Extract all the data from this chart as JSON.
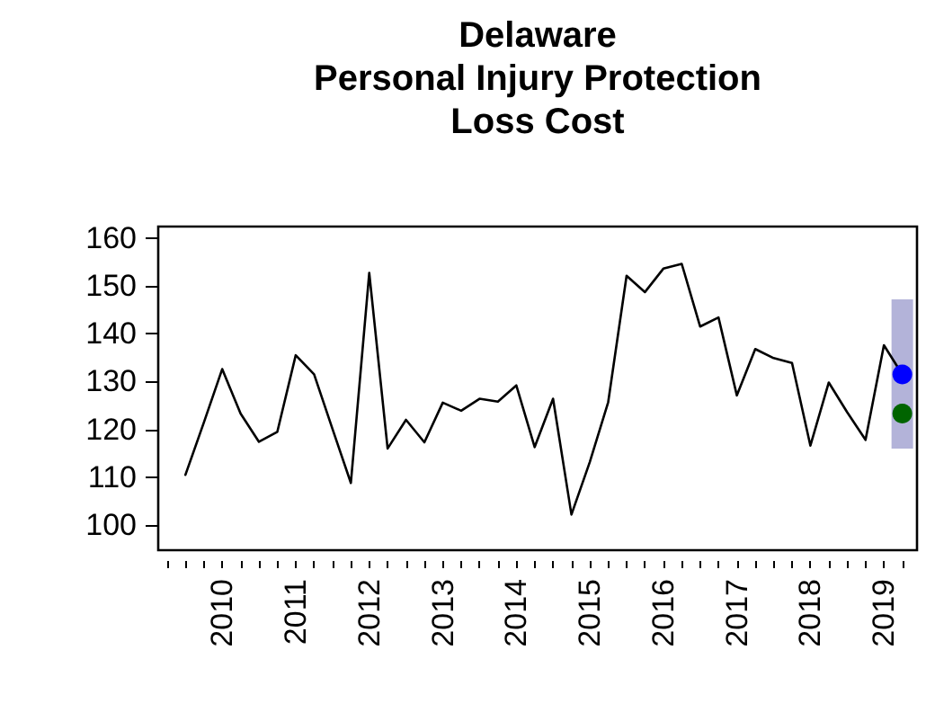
{
  "chart_data": {
    "type": "line",
    "title": "Delaware\nPersonal Injury Protection\nLoss Cost",
    "xlim": [
      2009.13,
      2019.45
    ],
    "ylim": [
      94.75,
      162.4
    ],
    "xticks": [
      {
        "value": 2009.25,
        "label": null
      },
      {
        "value": 2009.5,
        "label": null
      },
      {
        "value": 2009.75,
        "label": null
      },
      2010,
      {
        "value": 2010.25,
        "label": null
      },
      {
        "value": 2010.5,
        "label": null
      },
      {
        "value": 2010.75,
        "label": null
      },
      2011,
      {
        "value": 2011.25,
        "label": null
      },
      {
        "value": 2011.5,
        "label": null
      },
      {
        "value": 2011.75,
        "label": null
      },
      2012,
      {
        "value": 2012.25,
        "label": null
      },
      {
        "value": 2012.5,
        "label": null
      },
      {
        "value": 2012.75,
        "label": null
      },
      2013,
      {
        "value": 2013.25,
        "label": null
      },
      {
        "value": 2013.5,
        "label": null
      },
      {
        "value": 2013.75,
        "label": null
      },
      2014,
      {
        "value": 2014.25,
        "label": null
      },
      {
        "value": 2014.5,
        "label": null
      },
      {
        "value": 2014.75,
        "label": null
      },
      2015,
      {
        "value": 2015.25,
        "label": null
      },
      {
        "value": 2015.5,
        "label": null
      },
      {
        "value": 2015.75,
        "label": null
      },
      2016,
      {
        "value": 2016.25,
        "label": null
      },
      {
        "value": 2016.5,
        "label": null
      },
      {
        "value": 2016.75,
        "label": null
      },
      2017,
      {
        "value": 2017.25,
        "label": null
      },
      {
        "value": 2017.5,
        "label": null
      },
      {
        "value": 2017.75,
        "label": null
      },
      2018,
      {
        "value": 2018.25,
        "label": null
      },
      {
        "value": 2018.5,
        "label": null
      },
      {
        "value": 2018.75,
        "label": null
      },
      2019,
      {
        "value": 2019.25,
        "label": null
      }
    ],
    "yticks": [
      100,
      110,
      120,
      130,
      140,
      150,
      160
    ],
    "grid": false,
    "series": [
      {
        "type": "bar",
        "color": "#b3b3d9",
        "x": [
          2019.25
        ],
        "base": [
          116
        ],
        "values": [
          31.2
        ]
      },
      {
        "color": "#000000",
        "marker": "none",
        "line_style": "solid",
        "x": [
          2009.5,
          2009.75,
          2010,
          2010.25,
          2010.5,
          2010.75,
          2011,
          2011.25,
          2011.5,
          2011.75,
          2012,
          2012.25,
          2012.5,
          2012.75,
          2013,
          2013.25,
          2013.5,
          2013.75,
          2014,
          2014.25,
          2014.5,
          2014.75,
          2015,
          2015.25,
          2015.5,
          2015.75,
          2016,
          2016.25,
          2016.5,
          2016.75,
          2017,
          2017.25,
          2017.5,
          2017.75,
          2018,
          2018.25,
          2018.5,
          2018.75,
          2019,
          2019.25
        ],
        "values": [
          110.5,
          121.4,
          132.6,
          123.3,
          117.4,
          119.5,
          135.5,
          131.5,
          120.1,
          108.8,
          152.7,
          116.0,
          122.0,
          117.3,
          125.6,
          123.9,
          126.4,
          125.8,
          129.2,
          116.3,
          126.4,
          102.2,
          113.2,
          125.7,
          152.1,
          148.7,
          153.6,
          154.6,
          141.5,
          143.4,
          127.1,
          136.8,
          134.9,
          133.9,
          116.6,
          129.8,
          123.6,
          117.8,
          137.6,
          131.5
        ]
      },
      {
        "type": "scatter",
        "color": "#0000ff",
        "marker": "circle",
        "x": [
          2019.25
        ],
        "values": [
          131.5
        ]
      },
      {
        "type": "scatter",
        "color": "#006400",
        "marker": "circle",
        "x": [
          2019.25
        ],
        "values": [
          123.3
        ]
      }
    ]
  }
}
